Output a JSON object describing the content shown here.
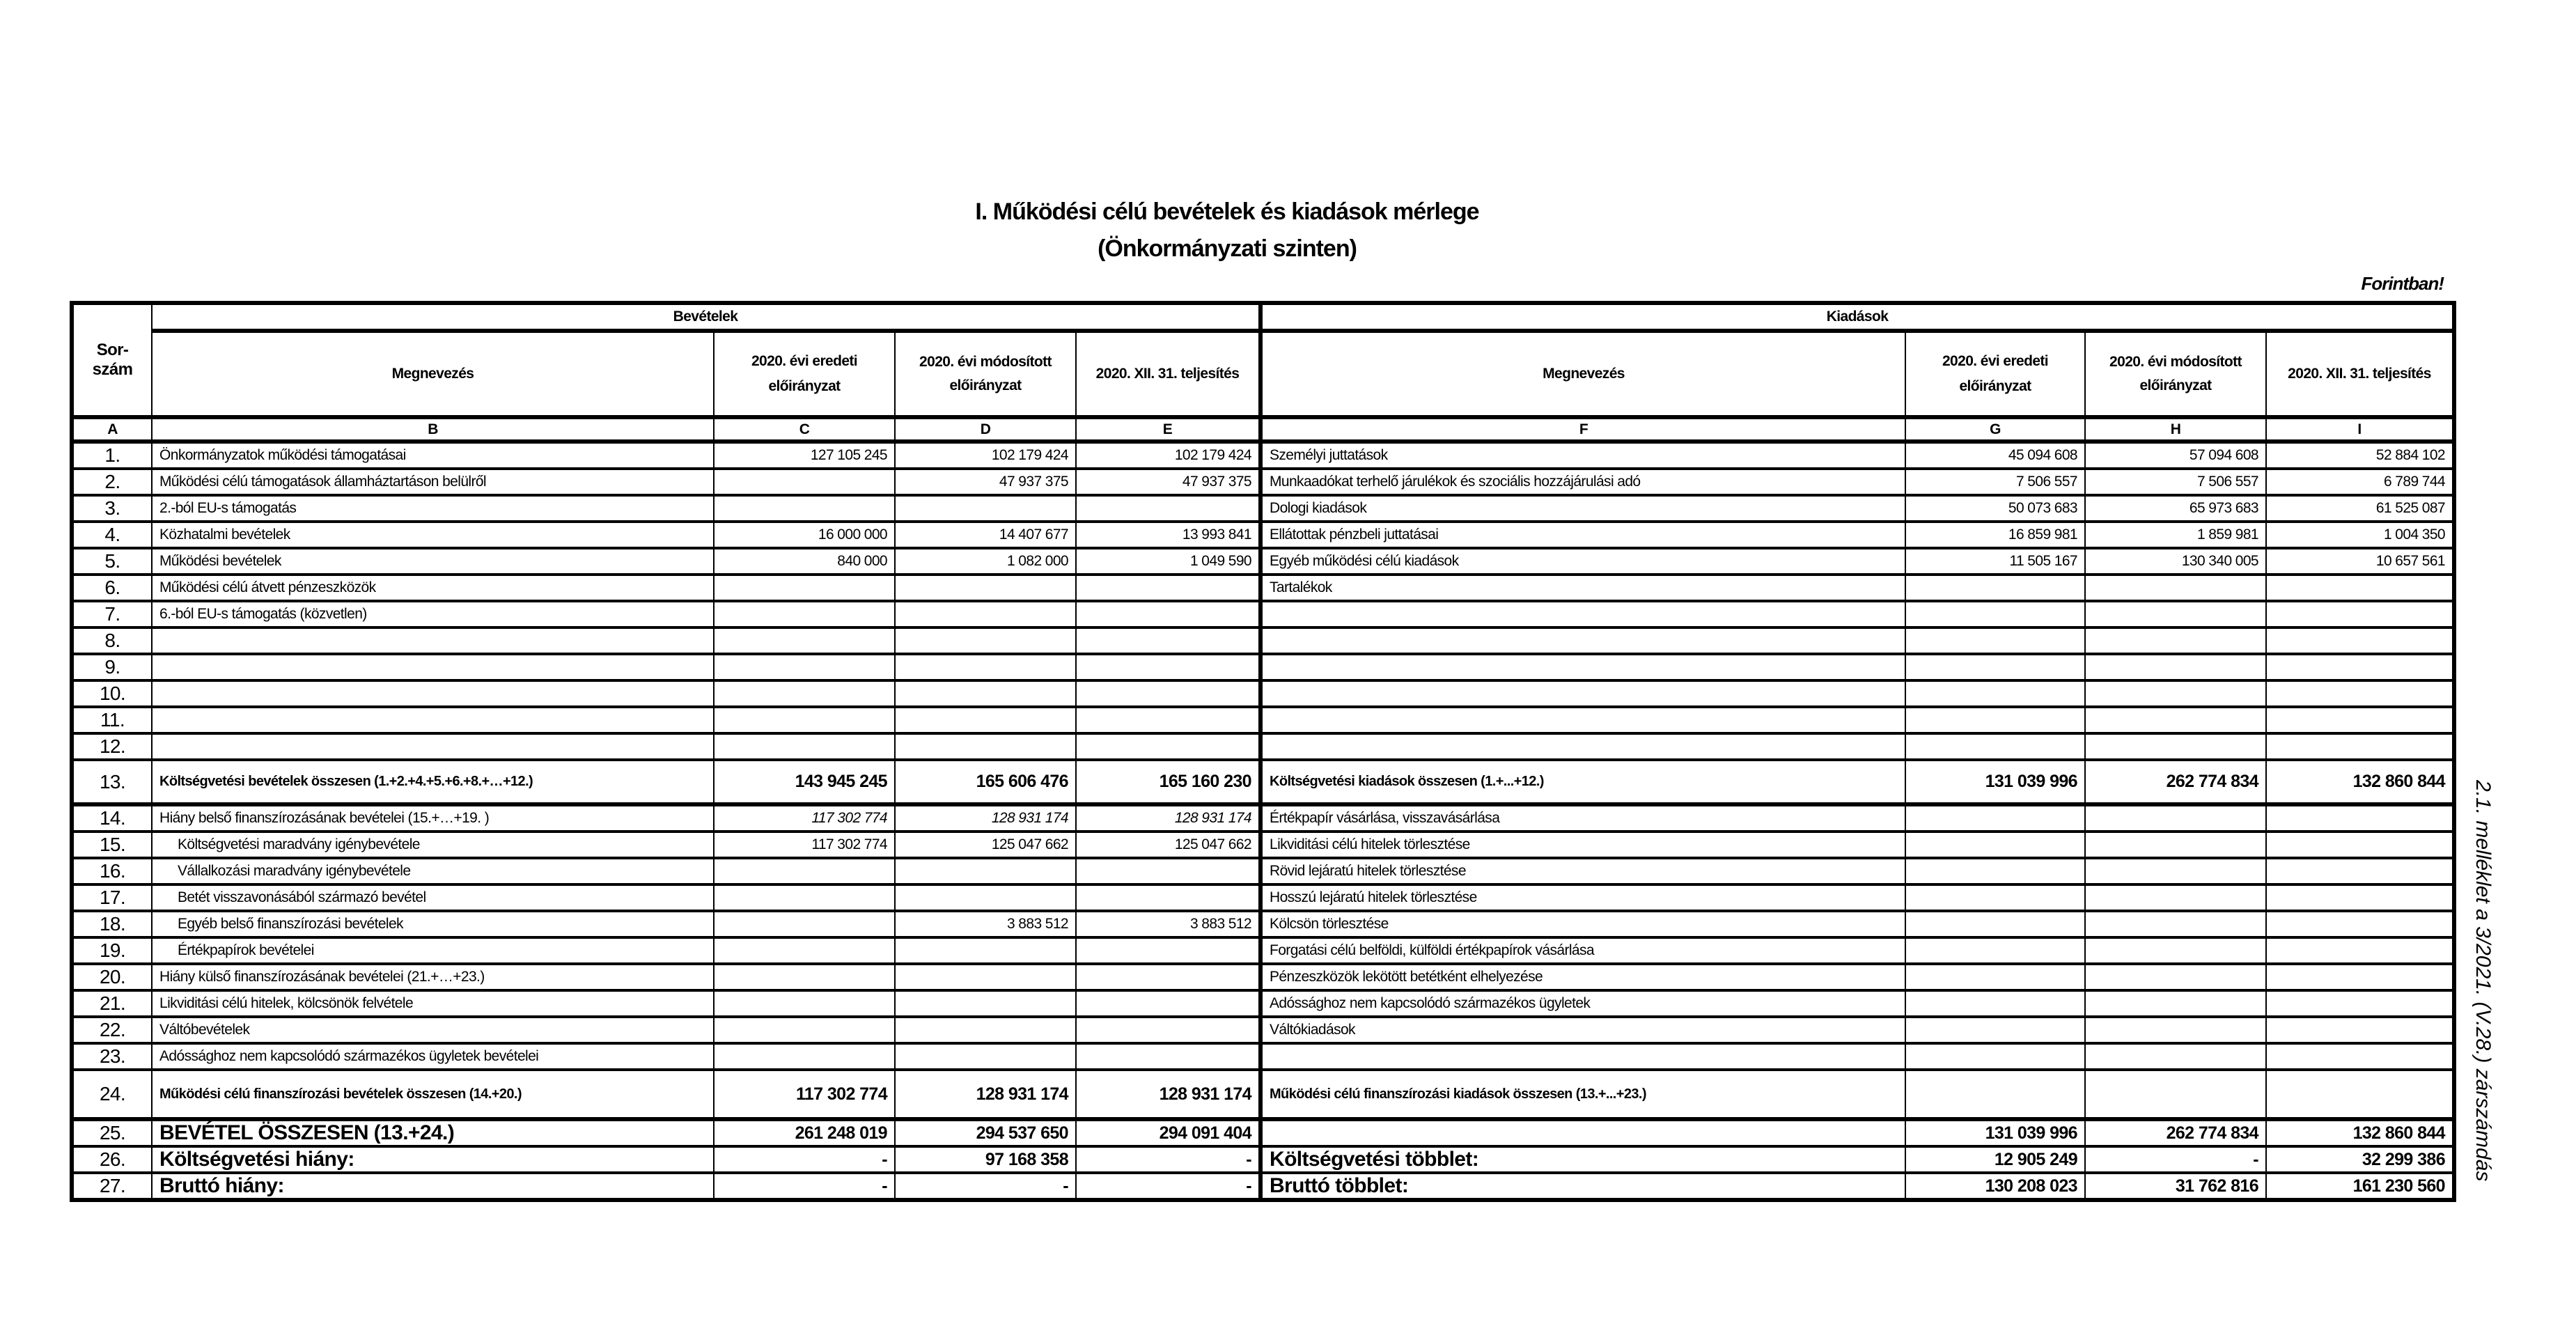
{
  "title_line1": "I. Működési célú bevételek és kiadások mérlege",
  "title_line2": "(Önkormányzati szinten)",
  "unit_note": "Forintban!",
  "side_note": "2.1. melléklet a 3/2021. (V.28.) zárszámdás",
  "header": {
    "sorszam": "Sor-\nszám",
    "revenue_group": "Bevételek",
    "expense_group": "Kiadások",
    "name_col": "Megnevezés",
    "col_original": "2020. évi eredeti előirányzat",
    "col_modified": "2020. évi módosított előirányzat",
    "col_actual": "2020. XII. 31. teljesítés",
    "letters": [
      "A",
      "B",
      "C",
      "D",
      "E",
      "F",
      "G",
      "H",
      "I"
    ]
  },
  "rows": [
    {
      "no": "1.",
      "rev": "Önkormányzatok működési támogatásai",
      "c": "127 105 245",
      "d": "102 179 424",
      "e": "102 179 424",
      "exp": "Személyi juttatások",
      "g": "45 094 608",
      "h": "57 094 608",
      "i": "52 884 102"
    },
    {
      "no": "2.",
      "rev": "Működési célú támogatások államháztartáson belülről",
      "c": "",
      "d": "47 937 375",
      "e": "47 937 375",
      "exp": "Munkaadókat terhelő járulékok és szociális hozzájárulási adó",
      "g": "7 506 557",
      "h": "7 506 557",
      "i": "6 789 744"
    },
    {
      "no": "3.",
      "rev": "2.-ból EU-s támogatás",
      "c": "",
      "d": "",
      "e": "",
      "exp": "Dologi kiadások",
      "g": "50 073 683",
      "h": "65 973 683",
      "i": "61 525 087"
    },
    {
      "no": "4.",
      "rev": "Közhatalmi bevételek",
      "c": "16 000 000",
      "d": "14 407 677",
      "e": "13 993 841",
      "exp": "Ellátottak pénzbeli juttatásai",
      "g": "16 859 981",
      "h": "1 859 981",
      "i": "1 004 350"
    },
    {
      "no": "5.",
      "rev": "Működési bevételek",
      "c": "840 000",
      "d": "1 082 000",
      "e": "1 049 590",
      "exp": "Egyéb működési célú kiadások",
      "g": "11 505 167",
      "h": "130 340 005",
      "i": "10 657 561"
    },
    {
      "no": "6.",
      "rev": "Működési célú átvett pénzeszközök",
      "c": "",
      "d": "",
      "e": "",
      "exp": "Tartalékok",
      "g": "",
      "h": "",
      "i": ""
    },
    {
      "no": "7.",
      "rev": "6.-ból EU-s támogatás (közvetlen)",
      "c": "",
      "d": "",
      "e": "",
      "exp": "",
      "g": "",
      "h": "",
      "i": ""
    },
    {
      "no": "8.",
      "rev": "",
      "c": "",
      "d": "",
      "e": "",
      "exp": "",
      "g": "",
      "h": "",
      "i": ""
    },
    {
      "no": "9.",
      "rev": "",
      "c": "",
      "d": "",
      "e": "",
      "exp": "",
      "g": "",
      "h": "",
      "i": ""
    },
    {
      "no": "10.",
      "rev": "",
      "c": "",
      "d": "",
      "e": "",
      "exp": "",
      "g": "",
      "h": "",
      "i": ""
    },
    {
      "no": "11.",
      "rev": "",
      "c": "",
      "d": "",
      "e": "",
      "exp": "",
      "g": "",
      "h": "",
      "i": ""
    },
    {
      "no": "12.",
      "rev": "",
      "c": "",
      "d": "",
      "e": "",
      "exp": "",
      "g": "",
      "h": "",
      "i": ""
    },
    {
      "no": "13.",
      "rev": "Költségvetési bevételek összesen (1.+2.+4.+5.+6.+8.+…+12.)",
      "c": "143 945 245",
      "d": "165 606 476",
      "e": "165 160 230",
      "exp": "Költségvetési kiadások összesen (1.+...+12.)",
      "g": "131 039 996",
      "h": "262 774 834",
      "i": "132 860 844"
    },
    {
      "no": "14.",
      "rev": "Hiány belső finanszírozásának bevételei (15.+…+19. )",
      "c": "117 302 774",
      "d": "128 931 174",
      "e": "128 931 174",
      "exp": "Értékpapír vásárlása, visszavásárlása",
      "g": "",
      "h": "",
      "i": ""
    },
    {
      "no": "15.",
      "rev": "Költségvetési maradvány igénybevétele",
      "c": "117 302 774",
      "d": "125 047 662",
      "e": "125 047 662",
      "exp": "Likviditási célú hitelek törlesztése",
      "g": "",
      "h": "",
      "i": ""
    },
    {
      "no": "16.",
      "rev": "Vállalkozási maradvány igénybevétele",
      "c": "",
      "d": "",
      "e": "",
      "exp": "Rövid lejáratú hitelek törlesztése",
      "g": "",
      "h": "",
      "i": ""
    },
    {
      "no": "17.",
      "rev": "Betét visszavonásából származó bevétel",
      "c": "",
      "d": "",
      "e": "",
      "exp": "Hosszú lejáratú hitelek törlesztése",
      "g": "",
      "h": "",
      "i": ""
    },
    {
      "no": "18.",
      "rev": "Egyéb belső finanszírozási bevételek",
      "c": "",
      "d": "3 883 512",
      "e": "3 883 512",
      "exp": "Kölcsön törlesztése",
      "g": "",
      "h": "",
      "i": ""
    },
    {
      "no": "19.",
      "rev": "Értékpapírok bevételei",
      "c": "",
      "d": "",
      "e": "",
      "exp": "Forgatási célú belföldi, külföldi értékpapírok vásárlása",
      "g": "",
      "h": "",
      "i": ""
    },
    {
      "no": "20.",
      "rev": "Hiány külső finanszírozásának bevételei (21.+…+23.)",
      "c": "",
      "d": "",
      "e": "",
      "exp": "Pénzeszközök lekötött betétként elhelyezése",
      "g": "",
      "h": "",
      "i": ""
    },
    {
      "no": "21.",
      "rev": "Likviditási célú hitelek, kölcsönök felvétele",
      "c": "",
      "d": "",
      "e": "",
      "exp": "Adóssághoz nem kapcsolódó származékos ügyletek",
      "g": "",
      "h": "",
      "i": ""
    },
    {
      "no": "22.",
      "rev": "Váltóbevételek",
      "c": "",
      "d": "",
      "e": "",
      "exp": "Váltókiadások",
      "g": "",
      "h": "",
      "i": ""
    },
    {
      "no": "23.",
      "rev": "Adóssághoz nem kapcsolódó származékos ügyletek bevételei",
      "c": "",
      "d": "",
      "e": "",
      "exp": "",
      "g": "",
      "h": "",
      "i": ""
    },
    {
      "no": "24.",
      "rev": "Működési célú finanszírozási bevételek összesen (14.+20.)",
      "c": "117 302 774",
      "d": "128 931 174",
      "e": "128 931 174",
      "exp": "Működési célú finanszírozási kiadások összesen (13.+...+23.)",
      "g": "",
      "h": "",
      "i": ""
    },
    {
      "no": "25.",
      "rev": "BEVÉTEL ÖSSZESEN (13.+24.)",
      "c": "261 248 019",
      "d": "294 537 650",
      "e": "294 091 404",
      "exp": "",
      "g": "131 039 996",
      "h": "262 774 834",
      "i": "132 860 844"
    },
    {
      "no": "26.",
      "rev": "Költségvetési hiány:",
      "c": "-",
      "d": "97 168 358",
      "e": "-",
      "exp": "Költségvetési többlet:",
      "g": "12 905 249",
      "h": "-",
      "i": "32 299 386"
    },
    {
      "no": "27.",
      "rev": "Bruttó  hiány:",
      "c": "-",
      "d": "-",
      "e": "-",
      "exp": "Bruttó  többlet:",
      "g": "130 208 023",
      "h": "31 762 816",
      "i": "161 230 560"
    }
  ]
}
